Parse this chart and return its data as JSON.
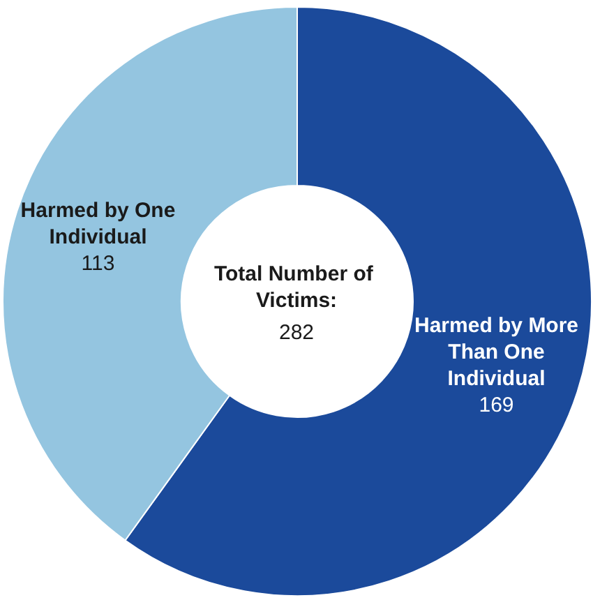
{
  "chart_data": {
    "type": "donut",
    "title": "Total Number of Victims:",
    "subtitle": "282",
    "categories": [
      "Harmed by More Than One Individual",
      "Harmed by One Individual"
    ],
    "values": [
      169,
      113
    ],
    "colors": [
      "#1b4a9b",
      "#94c5e0"
    ],
    "data_labels": true,
    "legend": false
  }
}
